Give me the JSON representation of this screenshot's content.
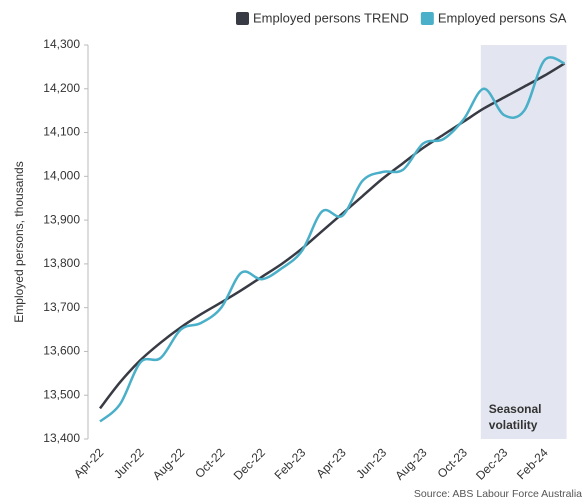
{
  "chart_data": {
    "type": "line",
    "y_label": "Employed persons, thousands",
    "source": "Source: ABS Labour Force Australia",
    "annotation": [
      "Seasonal",
      "volatility"
    ],
    "categories": [
      "Apr-22",
      null,
      "Jun-22",
      null,
      "Aug-22",
      null,
      "Oct-22",
      null,
      "Dec-22",
      null,
      "Feb-23",
      null,
      "Apr-23",
      null,
      "Jun-23",
      null,
      "Aug-23",
      null,
      "Oct-23",
      null,
      "Dec-23",
      null,
      "Feb-24",
      null
    ],
    "series": [
      {
        "name": "Employed persons TREND",
        "color": "#383b44",
        "values": [
          13470,
          13530,
          13580,
          13620,
          13655,
          13685,
          13712,
          13740,
          13770,
          13800,
          13835,
          13875,
          13915,
          13955,
          13995,
          14030,
          14065,
          14095,
          14125,
          14155,
          14180,
          14205,
          14230,
          14258
        ]
      },
      {
        "name": "Employed persons SA",
        "color": "#4aafc8",
        "values": [
          13440,
          13480,
          13575,
          13585,
          13650,
          13665,
          13700,
          13780,
          13765,
          13790,
          13830,
          13920,
          13910,
          13990,
          14010,
          14015,
          14075,
          14085,
          14130,
          14200,
          14140,
          14150,
          14265,
          14258
        ]
      }
    ],
    "ylim": [
      13400,
      14300
    ],
    "yticks": [
      {
        "value": 13400,
        "label": "13,400"
      },
      {
        "value": 13500,
        "label": "13,500"
      },
      {
        "value": 13600,
        "label": "13,600"
      },
      {
        "value": 13700,
        "label": "13,700"
      },
      {
        "value": 13800,
        "label": "13,800"
      },
      {
        "value": 13900,
        "label": "13,900"
      },
      {
        "value": 14000,
        "label": "14,000"
      },
      {
        "value": 14100,
        "label": "14,100"
      },
      {
        "value": 14200,
        "label": "14,200"
      },
      {
        "value": 14300,
        "label": "14,300"
      }
    ]
  }
}
